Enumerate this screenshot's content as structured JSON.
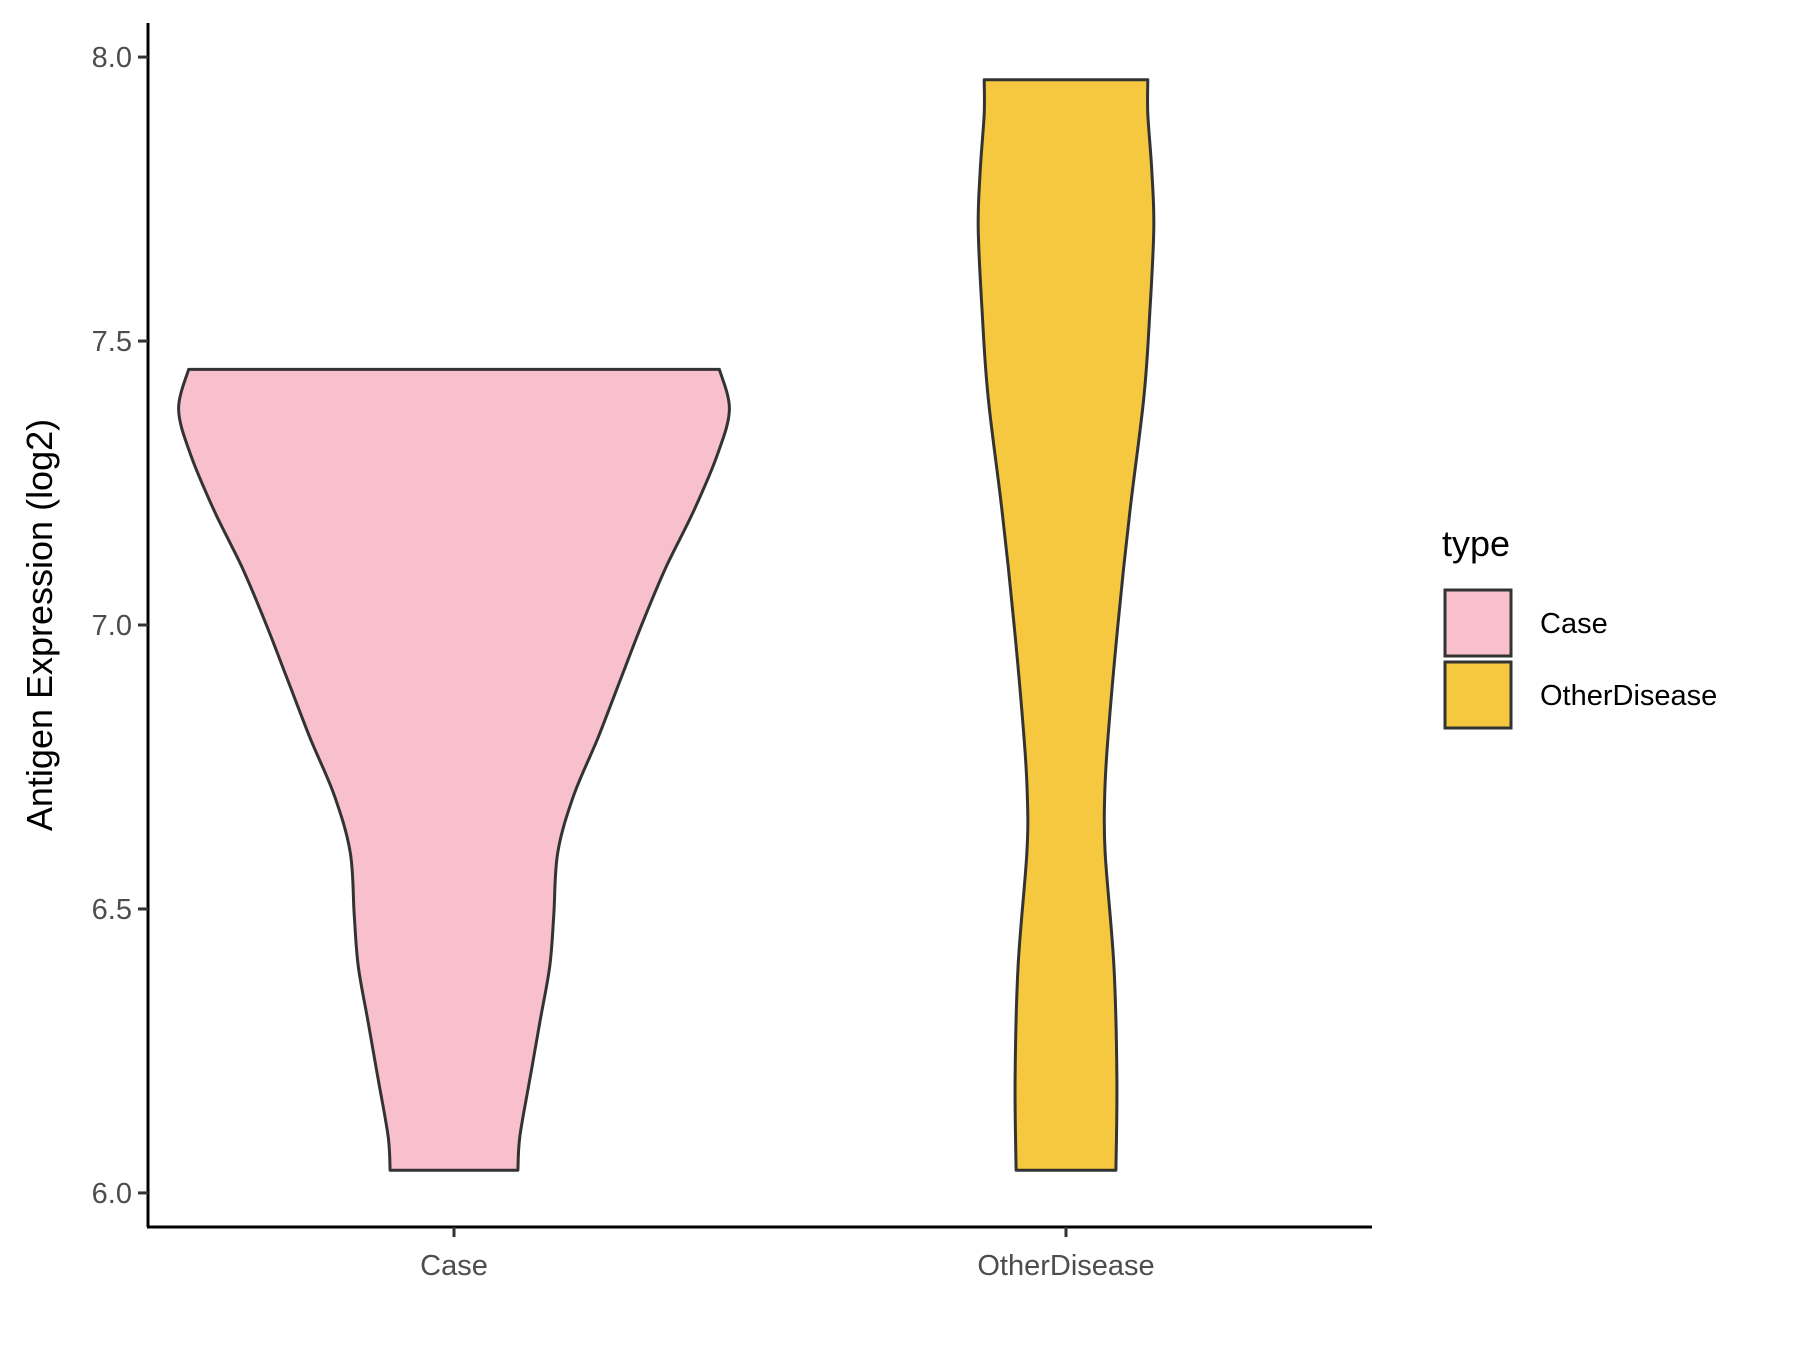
{
  "chart_data": {
    "type": "violin",
    "title": "",
    "xlabel": "",
    "ylabel": "Antigen Expression (log2)",
    "ylim": [
      5.94,
      8.06
    ],
    "yticks": [
      "6.0",
      "6.5",
      "7.0",
      "7.5",
      "8.0"
    ],
    "ytick_values": [
      6.0,
      6.5,
      7.0,
      7.5,
      8.0
    ],
    "categories": [
      "Case",
      "OtherDisease"
    ],
    "grid": false,
    "legend": {
      "title": "type",
      "placement": "right",
      "entries": [
        "Case",
        "OtherDisease"
      ]
    },
    "series": [
      {
        "name": "Case",
        "color": "#F7C0CC",
        "min": 6.04,
        "max": 7.45,
        "density_profile": [
          [
            6.04,
            0.32
          ],
          [
            6.1,
            0.33
          ],
          [
            6.2,
            0.38
          ],
          [
            6.3,
            0.43
          ],
          [
            6.4,
            0.48
          ],
          [
            6.49,
            0.5
          ],
          [
            6.6,
            0.52
          ],
          [
            6.7,
            0.6
          ],
          [
            6.8,
            0.72
          ],
          [
            6.9,
            0.83
          ],
          [
            7.0,
            0.94
          ],
          [
            7.1,
            1.06
          ],
          [
            7.2,
            1.2
          ],
          [
            7.3,
            1.32
          ],
          [
            7.38,
            1.38
          ],
          [
            7.45,
            1.33
          ]
        ]
      },
      {
        "name": "OtherDisease",
        "color": "#F5C83F",
        "min": 6.04,
        "max": 7.96,
        "density_profile": [
          [
            6.04,
            0.25
          ],
          [
            6.2,
            0.255
          ],
          [
            6.4,
            0.24
          ],
          [
            6.6,
            0.196
          ],
          [
            6.7,
            0.194
          ],
          [
            6.8,
            0.21
          ],
          [
            7.0,
            0.26
          ],
          [
            7.2,
            0.32
          ],
          [
            7.4,
            0.39
          ],
          [
            7.55,
            0.42
          ],
          [
            7.7,
            0.44
          ],
          [
            7.8,
            0.43
          ],
          [
            7.9,
            0.41
          ],
          [
            7.96,
            0.41
          ]
        ]
      }
    ]
  }
}
